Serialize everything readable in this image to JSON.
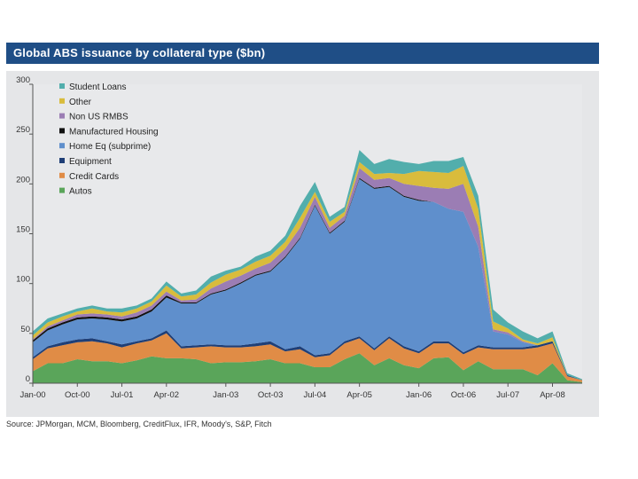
{
  "title": "Global ABS issuance by collateral type ($bn)",
  "source": "Source: JPMorgan, MCM, Bloomberg, CreditFlux, IFR, Moody's, S&P, Fitch",
  "chart_data": {
    "type": "area",
    "stacked": true,
    "title": "Global ABS issuance by collateral type ($bn)",
    "xlabel": "",
    "ylabel": "",
    "ylim": [
      0,
      300
    ],
    "yticks": [
      0,
      50,
      100,
      150,
      200,
      250,
      300
    ],
    "grid": false,
    "legend_position": "top-left",
    "xtick_labels": [
      {
        "index": 0,
        "label": "Jan-00"
      },
      {
        "index": 3,
        "label": "Oct-00"
      },
      {
        "index": 6,
        "label": "Jul-01"
      },
      {
        "index": 9,
        "label": "Apr-02"
      },
      {
        "index": 13,
        "label": "Jan-03"
      },
      {
        "index": 16,
        "label": "Oct-03"
      },
      {
        "index": 19,
        "label": "Jul-04"
      },
      {
        "index": 22,
        "label": "Apr-05"
      },
      {
        "index": 26,
        "label": "Jan-06"
      },
      {
        "index": 29,
        "label": "Oct-06"
      },
      {
        "index": 32,
        "label": "Jul-07"
      },
      {
        "index": 35,
        "label": "Apr-08"
      }
    ],
    "series": [
      {
        "name": "Autos",
        "color": "#5aa55a",
        "values": [
          12,
          20,
          20,
          24,
          22,
          22,
          20,
          23,
          27,
          25,
          25,
          24,
          20,
          21,
          21,
          22,
          24,
          20,
          20,
          16,
          16,
          24,
          30,
          18,
          25,
          18,
          15,
          25,
          26,
          13,
          22,
          14,
          14,
          14,
          8,
          20,
          3,
          1
        ]
      },
      {
        "name": "Credit Cards",
        "color": "#e08c46",
        "values": [
          12,
          15,
          18,
          17,
          20,
          18,
          16,
          17,
          16,
          25,
          10,
          12,
          17,
          15,
          15,
          15,
          15,
          12,
          14,
          10,
          12,
          16,
          15,
          15,
          20,
          17,
          15,
          15,
          14,
          16,
          14,
          20,
          20,
          20,
          28,
          20,
          4,
          2
        ]
      },
      {
        "name": "Equipment",
        "color": "#1f3f77",
        "values": [
          2,
          2,
          3,
          3,
          3,
          2,
          3,
          2,
          2,
          3,
          2,
          2,
          2,
          2,
          2,
          3,
          3,
          2,
          3,
          2,
          2,
          2,
          2,
          2,
          2,
          2,
          2,
          2,
          2,
          2,
          2,
          2,
          2,
          2,
          2,
          2,
          1,
          0
        ]
      },
      {
        "name": "Home Eq (subprime)",
        "color": "#5f8fcc",
        "values": [
          15,
          16,
          18,
          20,
          20,
          22,
          23,
          23,
          27,
          33,
          43,
          42,
          50,
          55,
          62,
          68,
          70,
          92,
          108,
          150,
          120,
          120,
          158,
          160,
          150,
          150,
          151,
          140,
          133,
          141,
          99,
          16,
          13,
          5,
          0,
          0,
          0,
          0
        ]
      },
      {
        "name": "Manufactured Housing",
        "color": "#111111",
        "values": [
          2,
          2,
          2,
          2,
          2,
          2,
          2,
          2,
          2,
          2,
          1,
          1,
          1,
          1,
          1,
          1,
          1,
          1,
          1,
          1,
          1,
          1,
          1,
          1,
          1,
          1,
          1,
          0,
          0,
          0,
          0,
          0,
          0,
          0,
          0,
          0,
          0,
          0
        ]
      },
      {
        "name": "Non US RMBS",
        "color": "#9b7db4",
        "values": [
          1,
          2,
          2,
          3,
          3,
          3,
          3,
          4,
          4,
          4,
          2,
          3,
          5,
          8,
          7,
          6,
          8,
          8,
          10,
          8,
          5,
          5,
          10,
          8,
          8,
          12,
          14,
          14,
          20,
          28,
          20,
          2,
          2,
          1,
          0,
          0,
          0,
          0
        ]
      },
      {
        "name": "Other",
        "color": "#d9bc3c",
        "values": [
          4,
          4,
          4,
          3,
          5,
          3,
          4,
          4,
          4,
          6,
          4,
          5,
          6,
          7,
          6,
          7,
          7,
          7,
          10,
          5,
          6,
          4,
          6,
          6,
          5,
          10,
          15,
          16,
          16,
          18,
          18,
          8,
          4,
          2,
          2,
          4,
          0,
          0
        ]
      },
      {
        "name": "Student Loans",
        "color": "#52aeac",
        "values": [
          4,
          4,
          3,
          3,
          3,
          3,
          4,
          3,
          3,
          4,
          3,
          4,
          6,
          4,
          3,
          5,
          5,
          6,
          12,
          10,
          5,
          5,
          12,
          10,
          14,
          12,
          7,
          11,
          12,
          9,
          13,
          12,
          6,
          8,
          5,
          6,
          2,
          1
        ]
      }
    ]
  }
}
